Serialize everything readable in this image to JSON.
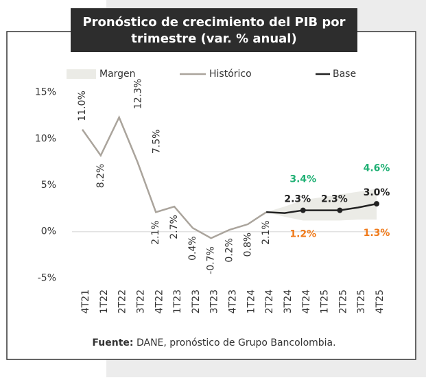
{
  "chart_data": {
    "type": "line",
    "title": [
      "Pronóstico de crecimiento del PIB por",
      "trimestre (var. % anual)"
    ],
    "categories": [
      "4T21",
      "1T22",
      "2T22",
      "3T22",
      "4T22",
      "1T23",
      "2T23",
      "3T23",
      "4T23",
      "1T24",
      "2T24",
      "3T24",
      "4T24",
      "1T25",
      "2T25",
      "3T25",
      "4T25"
    ],
    "series": [
      {
        "name": "Histórico",
        "color": "#aaa49c",
        "values": [
          11.0,
          8.2,
          12.3,
          7.5,
          2.1,
          2.7,
          0.4,
          -0.7,
          0.2,
          0.8,
          2.1,
          null,
          null,
          null,
          null,
          null,
          null
        ],
        "value_labels": [
          "11.0%",
          "8.2%",
          "12.3%",
          "7.5%",
          "2.1%",
          "2.7%",
          "0.4%",
          "-0.7%",
          "0.2%",
          "0.8%",
          "2.1%",
          null,
          null,
          null,
          null,
          null,
          null
        ]
      },
      {
        "name": "Base",
        "color": "#222222",
        "values": [
          null,
          null,
          null,
          null,
          null,
          null,
          null,
          null,
          null,
          null,
          2.1,
          2.0,
          2.3,
          2.3,
          2.3,
          2.6,
          3.0
        ],
        "value_labels": [
          null,
          null,
          null,
          null,
          null,
          null,
          null,
          null,
          null,
          null,
          null,
          null,
          "2.3%",
          null,
          "2.3%",
          null,
          "3.0%"
        ]
      }
    ],
    "margin": {
      "name": "Margen",
      "color": "#ebebe6",
      "high": [
        null,
        null,
        null,
        null,
        null,
        null,
        null,
        null,
        null,
        null,
        2.1,
        2.7,
        3.4,
        3.7,
        4.0,
        4.3,
        4.6
      ],
      "high_labels": [
        null,
        null,
        null,
        null,
        null,
        null,
        null,
        null,
        null,
        null,
        null,
        null,
        "3.4%",
        null,
        null,
        null,
        "4.6%"
      ],
      "high_color": "#1fb074",
      "low": [
        null,
        null,
        null,
        null,
        null,
        null,
        null,
        null,
        null,
        null,
        2.1,
        1.6,
        1.2,
        1.2,
        1.2,
        1.3,
        1.3
      ],
      "low_labels": [
        null,
        null,
        null,
        null,
        null,
        null,
        null,
        null,
        null,
        null,
        null,
        null,
        "1.2%",
        null,
        null,
        null,
        "1.3%"
      ],
      "low_color": "#f07a1a"
    },
    "ylim": [
      -6,
      16
    ],
    "yticks": [
      {
        "value": 15,
        "label": "15%"
      },
      {
        "value": 10,
        "label": "10%"
      },
      {
        "value": 5,
        "label": "5%"
      },
      {
        "value": 0,
        "label": "0%"
      },
      {
        "value": -5,
        "label": "-5%"
      }
    ],
    "grid": false,
    "source_label": "Fuente:",
    "source": "DANE, pronóstico de Grupo Bancolombia."
  }
}
